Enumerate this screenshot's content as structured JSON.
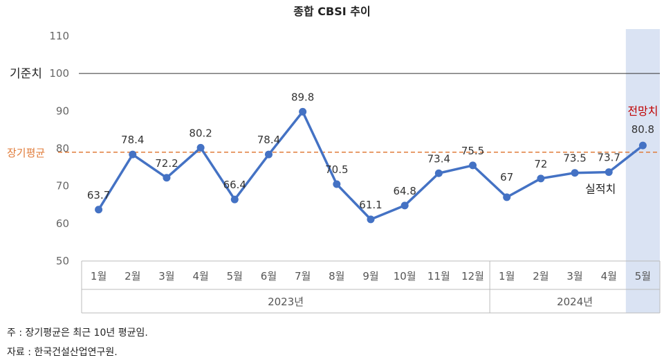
{
  "chart_data": {
    "type": "line",
    "title": "종합 CBSI 추이",
    "ylim": [
      50,
      110
    ],
    "yticks": [
      50,
      60,
      70,
      80,
      90,
      100,
      110
    ],
    "grid": false,
    "categories": [
      "1월",
      "2월",
      "3월",
      "4월",
      "5월",
      "6월",
      "7월",
      "8월",
      "9월",
      "10월",
      "11월",
      "12월",
      "1월",
      "2월",
      "3월",
      "4월",
      "5월"
    ],
    "year_groups": [
      {
        "label": "2023년",
        "count": 12
      },
      {
        "label": "2024년",
        "count": 5
      }
    ],
    "series": [
      {
        "values": [
          63.7,
          78.4,
          72.2,
          80.2,
          66.4,
          78.4,
          89.8,
          70.5,
          61.1,
          64.8,
          73.4,
          75.5,
          67,
          72,
          73.5,
          73.7,
          80.8
        ],
        "labels": [
          "63.7",
          "78.4",
          "72.2",
          "80.2",
          "66.4",
          "78.4",
          "89.8",
          "70.5",
          "61.1",
          "64.8",
          "73.4",
          "75.5",
          "67",
          "72",
          "73.5",
          "73.7",
          "80.8"
        ]
      }
    ],
    "reference_lines": [
      {
        "label": "기준치",
        "value": 100
      },
      {
        "label": "장기평균",
        "value": 79
      }
    ],
    "annotations": {
      "actual": "실적치",
      "forecast": "전망치",
      "forecast_index": 16
    },
    "colors": {
      "line": "#4472c4",
      "avg": "#e07b39",
      "forecast_text": "#c00000",
      "forecast_bg": "#dae3f3",
      "base": "#333333"
    }
  },
  "notes": {
    "note1": "주 : 장기평균은 최근 10년 평균임.",
    "note2": "자료 : 한국건설산업연구원."
  }
}
